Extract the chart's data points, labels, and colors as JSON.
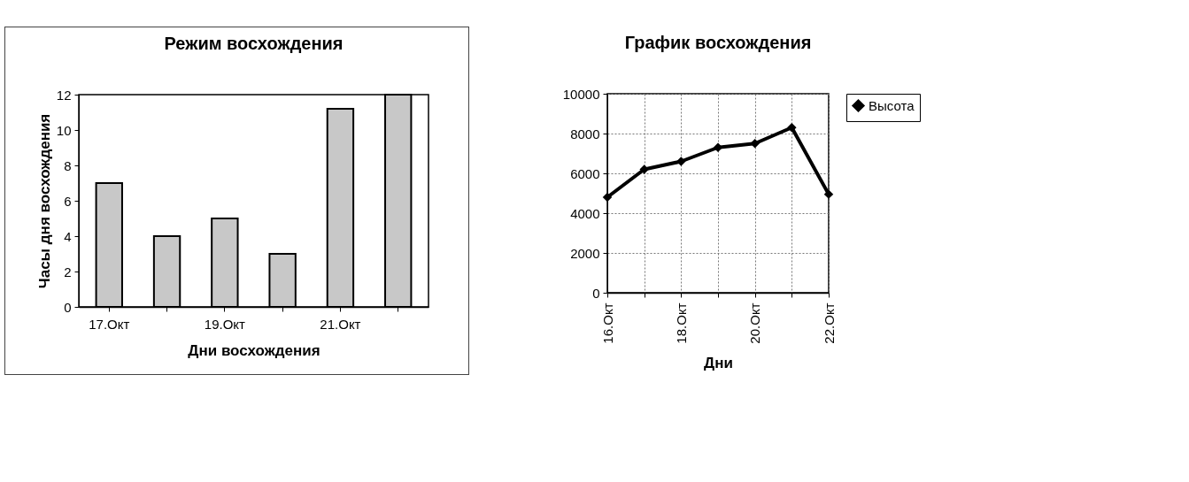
{
  "chart_data": [
    {
      "type": "bar",
      "title": "Режим восхождения",
      "xlabel": "Дни восхождения",
      "ylabel": "Часы дня восхождения",
      "categories": [
        "17.Окт",
        null,
        "19.Окт",
        null,
        "21.Окт",
        null
      ],
      "values": [
        7,
        4,
        5,
        3,
        11.2,
        12
      ],
      "color": "#c8c8c8",
      "ylim": [
        0,
        12
      ],
      "yticks": [
        0,
        2,
        4,
        6,
        8,
        10,
        12
      ],
      "grid": false
    },
    {
      "type": "line",
      "title": "График восхождения",
      "xlabel": "Дни",
      "categories": [
        "16.Окт",
        null,
        "18.Окт",
        null,
        "20.Окт",
        null,
        "22.Окт"
      ],
      "series": [
        {
          "name": "Высота",
          "color": "#000000",
          "values": [
            4800,
            6200,
            6600,
            7300,
            7500,
            8300,
            4950
          ]
        }
      ],
      "ylim": [
        0,
        10000
      ],
      "yticks": [
        0,
        2000,
        4000,
        6000,
        8000,
        10000
      ],
      "grid": true,
      "legend": "right",
      "marker": "diamond",
      "line_style": "solid"
    }
  ]
}
